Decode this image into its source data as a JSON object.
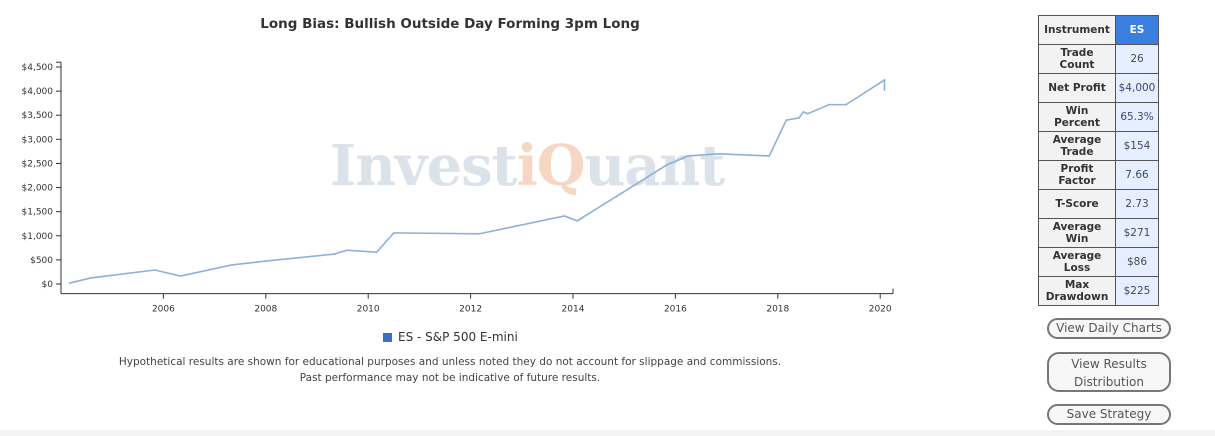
{
  "chart_data": {
    "type": "line",
    "title": "Long Bias: Bullish Outside Day Forming 3pm Long",
    "xlabel": "",
    "ylabel": "",
    "ylim": [
      -200,
      4600
    ],
    "xlim": [
      "2004-01",
      "2020-04"
    ],
    "y_ticks": [
      "$0",
      "$500",
      "$1,000",
      "$1,500",
      "$2,000",
      "$2,500",
      "$3,000",
      "$3,500",
      "$4,000",
      "$4,500"
    ],
    "y_tick_values": [
      0,
      500,
      1000,
      1500,
      2000,
      2500,
      3000,
      3500,
      4000,
      4500
    ],
    "x_ticks": [
      "2006",
      "2008",
      "2010",
      "2012",
      "2014",
      "2016",
      "2018",
      "2020"
    ],
    "grid": false,
    "legend_position": "bottom",
    "series": [
      {
        "name": "ES - S&P 500 E-mini",
        "color": "#8fb0d8",
        "x": [
          "2004-03",
          "2004-08",
          "2005-11",
          "2006-05",
          "2007-05",
          "2008-01",
          "2009-05",
          "2009-08",
          "2010-03",
          "2010-07",
          "2012-03",
          "2013-11",
          "2014-02",
          "2015-11",
          "2016-04",
          "2016-11",
          "2017-11",
          "2018-03",
          "2018-06",
          "2018-07",
          "2018-08",
          "2019-01",
          "2019-05",
          "2020-02",
          "2020-02"
        ],
        "y": [
          20,
          125,
          290,
          165,
          395,
          475,
          620,
          700,
          660,
          1060,
          1040,
          1410,
          1310,
          2470,
          2655,
          2700,
          2655,
          3400,
          3445,
          3570,
          3530,
          3720,
          3720,
          4230,
          4020
        ]
      }
    ]
  },
  "watermark": {
    "part1": "Invest",
    "part2": "iQ",
    "part3": "uant"
  },
  "disclaimer": {
    "line1": "Hypothetical results are shown for educational purposes and unless noted they do not account for slippage and commissions.",
    "line2": "Past performance may not be indicative of future results."
  },
  "stats": [
    {
      "label": "Instrument",
      "value": "ES"
    },
    {
      "label": "Trade Count",
      "value": "26"
    },
    {
      "label": "Net Profit",
      "value": "$4,000"
    },
    {
      "label": "Win Percent",
      "value": "65.3%"
    },
    {
      "label": "Average Trade",
      "value": "$154"
    },
    {
      "label": "Profit Factor",
      "value": "7.66"
    },
    {
      "label": "T-Score",
      "value": "2.73"
    },
    {
      "label": "Average Win",
      "value": "$271"
    },
    {
      "label": "Average Loss",
      "value": "$86"
    },
    {
      "label": "Max Drawdown",
      "value": "$225"
    }
  ],
  "buttons": {
    "daily_charts": "View Daily Charts",
    "results_line1": "View Results",
    "results_line2": "Distribution",
    "save": "Save Strategy"
  }
}
